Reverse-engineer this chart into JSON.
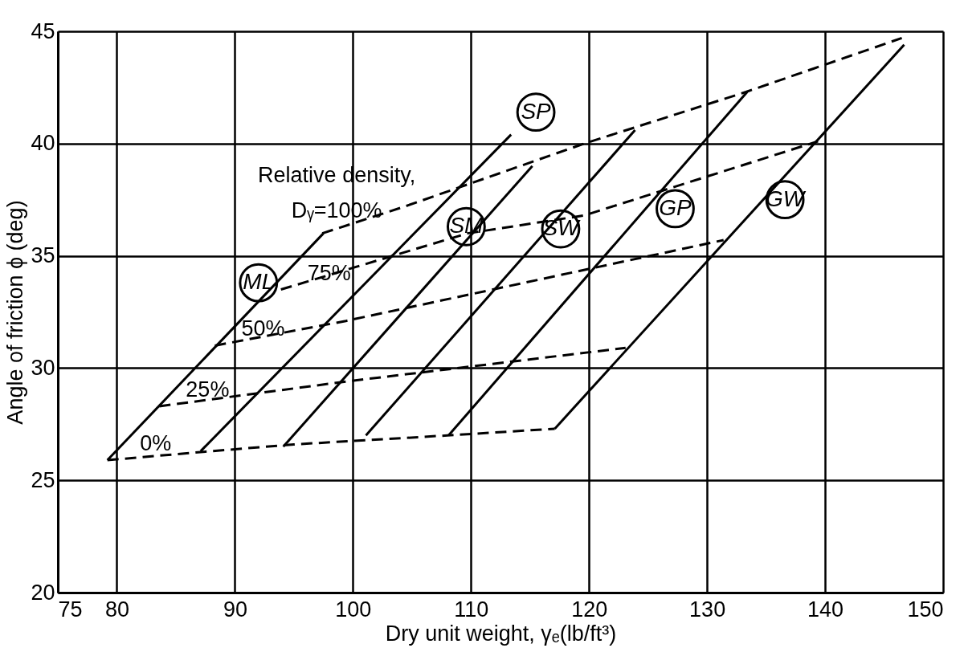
{
  "chart_data": {
    "type": "line",
    "xlabel": "Dry unit weight, γₑ(lb/ft³)",
    "ylabel": "Angle of friction ϕ (deg)",
    "xlim": [
      75,
      150
    ],
    "ylim": [
      20,
      45
    ],
    "xticks": [
      75,
      80,
      90,
      100,
      110,
      120,
      130,
      140,
      150
    ],
    "yticks": [
      20,
      25,
      30,
      35,
      40,
      45
    ],
    "grid": true,
    "series": [
      {
        "name": "0%",
        "line_style": "dashed",
        "color": "#000000",
        "x": [
          79.2,
          88,
          95,
          108,
          117.1
        ],
        "values": [
          25.9,
          26.3,
          26.6,
          27.0,
          27.3
        ]
      },
      {
        "name": "25%",
        "type": "line",
        "line_style": "dashed",
        "color": "#000000",
        "x": [
          83.6,
          99.4,
          123.1
        ],
        "values": [
          28.3,
          29.4,
          30.9
        ]
      },
      {
        "name": "50%",
        "type": "line",
        "line_style": "dashed",
        "color": "#000000",
        "x": [
          88.3,
          99.4,
          131.4
        ],
        "values": [
          31.0,
          32.1,
          35.7
        ]
      },
      {
        "name": "75%",
        "type": "line",
        "line_style": "dashed",
        "color": "#000000",
        "x": [
          93.9,
          109.7,
          119.6,
          139.4
        ],
        "values": [
          33.5,
          36.0,
          36.8,
          40.1
        ]
      },
      {
        "name": "Relative density,\nDᵧ=100%",
        "type": "line",
        "line_style": "dashed",
        "color": "#000000",
        "x": [
          97.4,
          104.4,
          119.6,
          133.3,
          146.5
        ],
        "values": [
          36.0,
          37.2,
          40.0,
          42.3,
          44.7
        ]
      },
      {
        "type": "line",
        "line_style": "solid",
        "color": "#000000",
        "x": [
          79.2,
          97.5
        ],
        "values": [
          25.9,
          36.0
        ]
      },
      {
        "type": "line",
        "line_style": "solid",
        "color": "#000000",
        "x": [
          87.1,
          113.4
        ],
        "values": [
          26.3,
          40.4
        ]
      },
      {
        "type": "line",
        "line_style": "solid",
        "color": "#000000",
        "x": [
          94.1,
          115.2
        ],
        "values": [
          26.5,
          39.0
        ]
      },
      {
        "type": "line",
        "line_style": "solid",
        "color": "#000000",
        "x": [
          101.1,
          123.9
        ],
        "values": [
          27.0,
          40.6
        ]
      },
      {
        "type": "line",
        "line_style": "solid",
        "color": "#000000",
        "x": [
          108.1,
          133.4
        ],
        "values": [
          27.0,
          42.3
        ]
      },
      {
        "type": "line",
        "line_style": "solid",
        "color": "#000000",
        "x": [
          117.1,
          146.7
        ],
        "values": [
          27.3,
          44.4
        ]
      },
      {
        "type": "scatter",
        "marker": "circle",
        "color": "#000000",
        "x": [
          92.0,
          109.6,
          115.5,
          117.6,
          127.3,
          136.6
        ],
        "values": [
          33.8,
          36.3,
          41.4,
          36.2,
          37.1,
          37.5
        ],
        "value_labels": [
          "ML",
          "SM",
          "SP",
          "SW",
          "GP",
          "GW"
        ]
      }
    ]
  }
}
